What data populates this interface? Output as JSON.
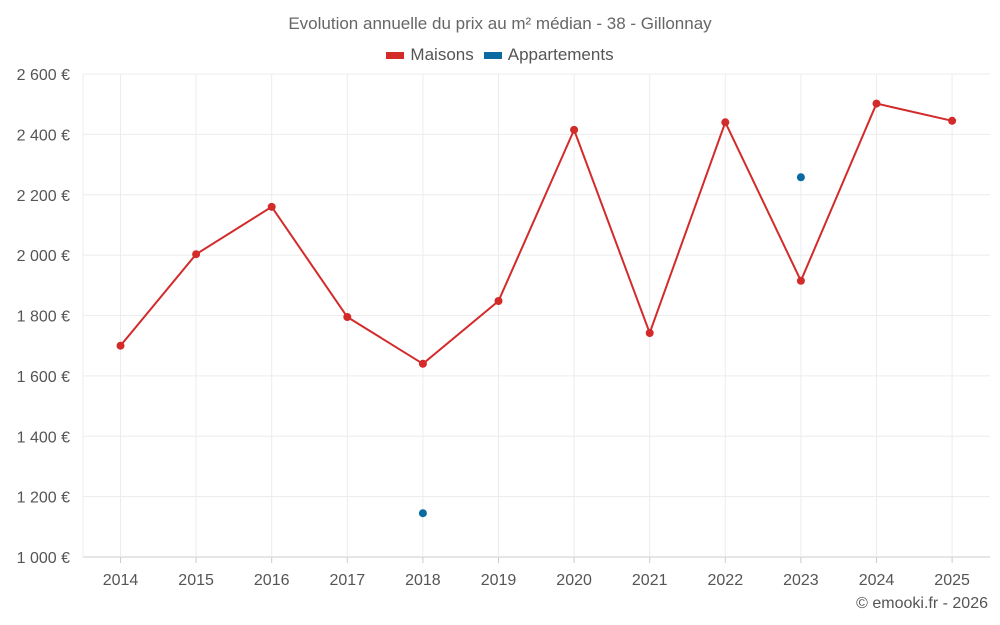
{
  "chart_data": {
    "type": "line",
    "title": "Evolution annuelle du prix au m² médian - 38 - Gillonnay",
    "categories": [
      "2014",
      "2015",
      "2016",
      "2017",
      "2018",
      "2019",
      "2020",
      "2021",
      "2022",
      "2023",
      "2024",
      "2025"
    ],
    "y_tick_labels": [
      "1 000 €",
      "1 200 €",
      "1 400 €",
      "1 600 €",
      "1 800 €",
      "2 000 €",
      "2 200 €",
      "2 400 €",
      "2 600 €"
    ],
    "y_ticks": [
      1000,
      1200,
      1400,
      1600,
      1800,
      2000,
      2200,
      2400,
      2600
    ],
    "ylim": [
      1000,
      2600
    ],
    "grid": true,
    "legend_position": "top-center",
    "series": [
      {
        "name": "Maisons",
        "color": "#d32a2a",
        "values": [
          1700,
          2003,
          2160,
          1795,
          1640,
          1848,
          2415,
          1742,
          2440,
          1915,
          2502,
          2445
        ]
      },
      {
        "name": "Appartements",
        "color": "#0a6aa1",
        "values": [
          null,
          null,
          null,
          null,
          1145,
          null,
          null,
          null,
          null,
          2258,
          null,
          null
        ]
      }
    ]
  },
  "credit": "© emooki.fr - 2026"
}
